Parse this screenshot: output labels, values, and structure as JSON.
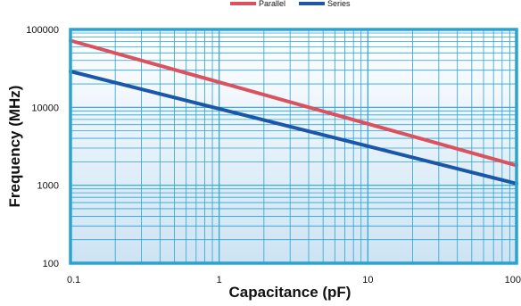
{
  "chart_data": {
    "type": "line",
    "xlabel": "Capacitance (pF)",
    "ylabel": "Frequency (MHz)",
    "x_scale": "log",
    "y_scale": "log",
    "xlim": [
      0.1,
      100
    ],
    "ylim": [
      100,
      100000
    ],
    "x_ticks": [
      "0.1",
      "1",
      "10",
      "100"
    ],
    "y_ticks": [
      "100",
      "1000",
      "10000",
      "100000"
    ],
    "grid": true,
    "legend_position": "top-center",
    "series": [
      {
        "name": "Parallel",
        "color": "#d9525e",
        "x": [
          0.1,
          100
        ],
        "y": [
          72000,
          1800
        ]
      },
      {
        "name": "Series",
        "color": "#1a57a8",
        "x": [
          0.1,
          100
        ],
        "y": [
          29000,
          1050
        ]
      }
    ],
    "colors": {
      "plot_border": "#29a3d6",
      "grid_line": "#29a3d6",
      "background_top": "#ffffff",
      "background_bottom": "#cde3f3"
    }
  }
}
